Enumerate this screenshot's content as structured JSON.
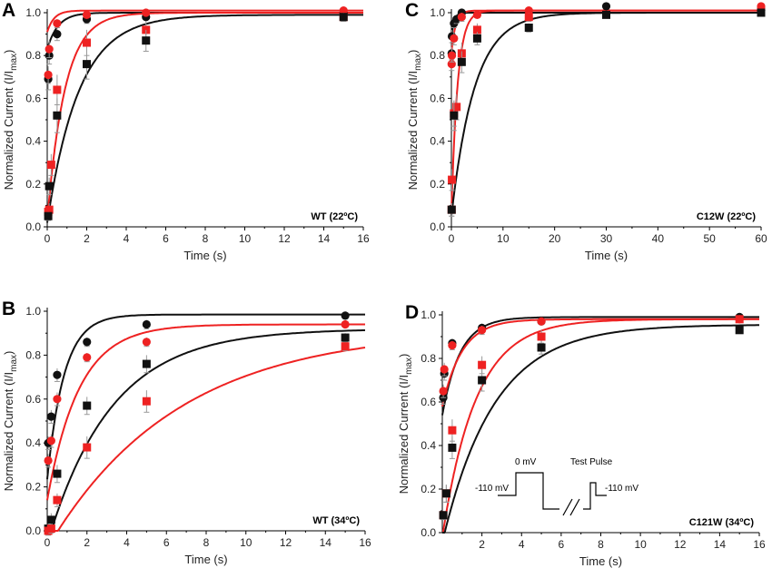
{
  "figure": {
    "name": "recovery-from-inactivation-figure"
  },
  "colors": {
    "black_series": "#111111",
    "red_series": "#ee2222",
    "error_bar": "#999999"
  },
  "chart_data": [
    {
      "panel": "A",
      "type": "scatter",
      "condition_label": "WT (22ºC)",
      "xlabel": "Time (s)",
      "ylabel": "Normalized Current (I/I",
      "ylabel_sub": "max",
      "ylabel_close": ")",
      "xlim": [
        0,
        16
      ],
      "ylim": [
        0,
        1.0
      ],
      "xticks": [
        0,
        2,
        4,
        6,
        8,
        10,
        12,
        14,
        16
      ],
      "yticks": [
        0.0,
        0.2,
        0.4,
        0.6,
        0.8,
        1.0
      ],
      "series": [
        {
          "name": "black-circle",
          "color": "black",
          "marker": "circle",
          "x": [
            0.05,
            0.1,
            0.5,
            2,
            5,
            15
          ],
          "y": [
            0.69,
            0.8,
            0.9,
            0.97,
            0.98,
            1.0
          ],
          "err": [
            0.05,
            0.04,
            0.03,
            0.02,
            0.01,
            0.01
          ],
          "fit": {
            "a": 1.0,
            "b": 0.17,
            "tau": 0.55,
            "plateau": 1.0
          }
        },
        {
          "name": "red-circle",
          "color": "red",
          "marker": "circle",
          "x": [
            0.05,
            0.1,
            0.5,
            2,
            5,
            15
          ],
          "y": [
            0.71,
            0.83,
            0.95,
            0.99,
            1.0,
            1.01
          ],
          "err": [
            0.04,
            0.04,
            0.02,
            0.01,
            0.01,
            0.01
          ],
          "fit": {
            "a": 1.01,
            "b": 0.1,
            "tau": 0.35,
            "plateau": 1.01
          }
        },
        {
          "name": "red-square",
          "color": "red",
          "marker": "square",
          "x": [
            0.05,
            0.1,
            0.2,
            0.5,
            2,
            5,
            15
          ],
          "y": [
            0.07,
            0.08,
            0.29,
            0.64,
            0.86,
            0.92,
            0.98
          ],
          "err": [
            0.02,
            0.03,
            0.05,
            0.07,
            0.06,
            0.04,
            0.02
          ],
          "fit": {
            "a": 1.0,
            "b": 0.97,
            "tau": 0.9,
            "plateau": 1.0
          }
        },
        {
          "name": "black-square",
          "color": "black",
          "marker": "square",
          "x": [
            0.05,
            0.1,
            0.5,
            2,
            5,
            15
          ],
          "y": [
            0.05,
            0.19,
            0.52,
            0.76,
            0.87,
            0.98
          ],
          "err": [
            0.02,
            0.04,
            0.08,
            0.07,
            0.05,
            0.02
          ],
          "fit": {
            "a": 0.99,
            "b": 0.97,
            "tau": 1.6,
            "plateau": 0.99
          }
        }
      ]
    },
    {
      "panel": "C",
      "type": "scatter",
      "condition_label": "C12W (22ºC)",
      "xlabel": "Time (s)",
      "ylabel": "Normalized Current (I/I",
      "ylabel_sub": "max",
      "ylabel_close": ")",
      "xlim": [
        0,
        60
      ],
      "ylim": [
        0,
        1.0
      ],
      "xticks": [
        0,
        10,
        20,
        30,
        40,
        50,
        60
      ],
      "yticks": [
        0.0,
        0.2,
        0.4,
        0.6,
        0.8,
        1.0
      ],
      "series": [
        {
          "name": "black-circle",
          "color": "black",
          "marker": "circle",
          "x": [
            0.05,
            0.1,
            0.5,
            1,
            2,
            30,
            60
          ],
          "y": [
            0.81,
            0.89,
            0.95,
            0.97,
            1.0,
            1.03,
            1.01
          ],
          "err": [
            0.03,
            0.03,
            0.02,
            0.02,
            0.01,
            0.01,
            0.01
          ],
          "fit": {
            "a": 1.0,
            "b": 0.12,
            "tau": 0.5,
            "plateau": 1.0
          }
        },
        {
          "name": "red-circle",
          "color": "red",
          "marker": "circle",
          "x": [
            0.05,
            0.1,
            0.5,
            2,
            5,
            15,
            60
          ],
          "y": [
            0.76,
            0.8,
            0.88,
            0.98,
            0.99,
            1.01,
            1.03
          ],
          "err": [
            0.03,
            0.03,
            0.03,
            0.02,
            0.01,
            0.01,
            0.01
          ],
          "fit": {
            "a": 1.01,
            "b": 0.2,
            "tau": 0.8,
            "plateau": 1.01
          }
        },
        {
          "name": "red-square",
          "color": "red",
          "marker": "square",
          "x": [
            0.05,
            0.1,
            0.5,
            1,
            2,
            5,
            15,
            60
          ],
          "y": [
            0.08,
            0.22,
            0.53,
            0.56,
            0.81,
            0.92,
            0.98,
            1.01
          ],
          "err": [
            0.03,
            0.05,
            0.06,
            0.06,
            0.05,
            0.03,
            0.02,
            0.01
          ],
          "fit": {
            "a": 1.01,
            "b": 0.95,
            "tau": 1.2,
            "plateau": 1.01
          }
        },
        {
          "name": "black-square",
          "color": "black",
          "marker": "square",
          "x": [
            0.05,
            0.5,
            2,
            5,
            15,
            30,
            60
          ],
          "y": [
            0.08,
            0.52,
            0.77,
            0.88,
            0.93,
            0.99,
            1.0
          ],
          "err": [
            0.03,
            0.07,
            0.05,
            0.03,
            0.02,
            0.01,
            0.01
          ],
          "fit": {
            "a": 1.0,
            "b": 0.95,
            "tau": 4.5,
            "plateau": 1.0
          }
        }
      ]
    },
    {
      "panel": "B",
      "type": "scatter",
      "condition_label": "WT (34ºC)",
      "xlabel": "Time (s)",
      "ylabel": "Normalized Current (I/I",
      "ylabel_sub": "max",
      "ylabel_close": ")",
      "xlim": [
        0,
        16
      ],
      "ylim": [
        0,
        1.0
      ],
      "xticks": [
        0,
        2,
        4,
        6,
        8,
        10,
        12,
        14,
        16
      ],
      "yticks": [
        0.0,
        0.2,
        0.4,
        0.6,
        0.8,
        1.0
      ],
      "series": [
        {
          "name": "black-circle",
          "color": "black",
          "marker": "circle",
          "x": [
            0.05,
            0.2,
            0.5,
            2,
            5,
            15
          ],
          "y": [
            0.4,
            0.52,
            0.71,
            0.86,
            0.94,
            0.98
          ],
          "err": [
            0.03,
            0.03,
            0.03,
            0.02,
            0.02,
            0.01
          ],
          "fit": {
            "a": 0.985,
            "b": 0.75,
            "tau": 0.85,
            "plateau": 0.985
          }
        },
        {
          "name": "red-circle",
          "color": "red",
          "marker": "circle",
          "x": [
            0.05,
            0.2,
            0.5,
            2,
            5,
            15
          ],
          "y": [
            0.32,
            0.41,
            0.6,
            0.79,
            0.86,
            0.94
          ],
          "err": [
            0.03,
            0.03,
            0.03,
            0.02,
            0.02,
            0.01
          ],
          "fit": {
            "a": 0.94,
            "b": 0.8,
            "tau": 1.6,
            "plateau": 0.94
          }
        },
        {
          "name": "black-square",
          "color": "black",
          "marker": "square",
          "x": [
            0.05,
            0.2,
            0.5,
            2,
            5,
            15
          ],
          "y": [
            0.01,
            0.05,
            0.26,
            0.57,
            0.76,
            0.88
          ],
          "err": [
            0.02,
            0.03,
            0.04,
            0.04,
            0.04,
            0.02
          ],
          "fit": {
            "a": 0.92,
            "b": 0.98,
            "tau": 3.2,
            "plateau": 0.92
          }
        },
        {
          "name": "red-square",
          "color": "red",
          "marker": "square",
          "x": [
            0.05,
            0.2,
            0.5,
            2,
            5,
            15
          ],
          "y": [
            0.0,
            0.01,
            0.14,
            0.38,
            0.59,
            0.84
          ],
          "err": [
            0.02,
            0.02,
            0.03,
            0.05,
            0.05,
            0.02
          ],
          "fit": {
            "a": 0.92,
            "b": 1.0,
            "tau": 6.5,
            "plateau": 0.92
          }
        }
      ]
    },
    {
      "panel": "D",
      "type": "scatter",
      "condition_label": "C121W (34ºC)",
      "xlabel": "Time (s)",
      "ylabel": "Normalized Current (I/I",
      "ylabel_sub": "max",
      "ylabel_close": ")",
      "xlim": [
        0,
        16
      ],
      "ylim": [
        0,
        1.0
      ],
      "xticks": [
        2,
        4,
        6,
        8,
        10,
        12,
        14,
        16
      ],
      "yticks": [
        0.0,
        0.2,
        0.4,
        0.6,
        0.8,
        1.0
      ],
      "series": [
        {
          "name": "black-circle",
          "color": "black",
          "marker": "circle",
          "x": [
            0.05,
            0.1,
            0.5,
            2,
            5,
            15
          ],
          "y": [
            0.62,
            0.73,
            0.87,
            0.94,
            0.97,
            0.99
          ],
          "err": [
            0.03,
            0.03,
            0.02,
            0.02,
            0.01,
            0.01
          ],
          "fit": {
            "a": 0.99,
            "b": 0.45,
            "tau": 0.9,
            "plateau": 0.99
          }
        },
        {
          "name": "red-circle",
          "color": "red",
          "marker": "circle",
          "x": [
            0.05,
            0.1,
            0.5,
            2,
            5,
            15
          ],
          "y": [
            0.65,
            0.75,
            0.86,
            0.93,
            0.97,
            0.98
          ],
          "err": [
            0.03,
            0.03,
            0.02,
            0.02,
            0.01,
            0.01
          ],
          "fit": {
            "a": 0.98,
            "b": 0.4,
            "tau": 1.0,
            "plateau": 0.98
          }
        },
        {
          "name": "red-square",
          "color": "red",
          "marker": "square",
          "x": [
            0.05,
            0.2,
            0.5,
            2,
            5,
            15
          ],
          "y": [
            0.08,
            0.18,
            0.47,
            0.77,
            0.9,
            0.98
          ],
          "err": [
            0.02,
            0.04,
            0.05,
            0.04,
            0.03,
            0.01
          ],
          "fit": {
            "a": 0.98,
            "b": 1.0,
            "tau": 1.7,
            "plateau": 0.98
          }
        },
        {
          "name": "black-square",
          "color": "black",
          "marker": "square",
          "x": [
            0.05,
            0.2,
            0.5,
            2,
            5,
            15
          ],
          "y": [
            0.08,
            0.18,
            0.39,
            0.7,
            0.85,
            0.93
          ],
          "err": [
            0.02,
            0.04,
            0.05,
            0.05,
            0.03,
            0.01
          ],
          "fit": {
            "a": 0.955,
            "b": 1.0,
            "tau": 2.6,
            "plateau": 0.955
          }
        }
      ],
      "inset_protocol": {
        "labels": {
          "holding_left": "-110 mV",
          "conditioning": "0 mV",
          "test": "Test Pulse",
          "holding_right": "-110 mV"
        }
      }
    }
  ]
}
